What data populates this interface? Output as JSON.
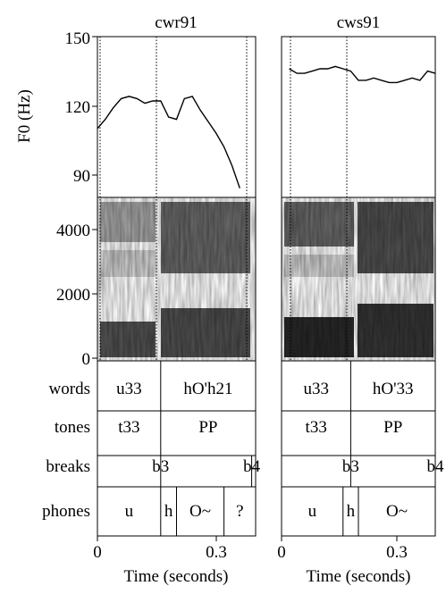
{
  "panels": [
    {
      "title": "cwr91",
      "f0_contour_hz": [
        {
          "t": 0.0,
          "f0": 110
        },
        {
          "t": 0.02,
          "f0": 114
        },
        {
          "t": 0.04,
          "f0": 119
        },
        {
          "t": 0.06,
          "f0": 123
        },
        {
          "t": 0.08,
          "f0": 124
        },
        {
          "t": 0.1,
          "f0": 123
        },
        {
          "t": 0.12,
          "f0": 121
        },
        {
          "t": 0.14,
          "f0": 122
        },
        {
          "t": 0.16,
          "f0": 122
        },
        {
          "t": 0.18,
          "f0": 115
        },
        {
          "t": 0.2,
          "f0": 114
        },
        {
          "t": 0.22,
          "f0": 123
        },
        {
          "t": 0.24,
          "f0": 124
        },
        {
          "t": 0.26,
          "f0": 118
        },
        {
          "t": 0.28,
          "f0": 113
        },
        {
          "t": 0.3,
          "f0": 108
        },
        {
          "t": 0.32,
          "f0": 102
        },
        {
          "t": 0.34,
          "f0": 94
        },
        {
          "t": 0.36,
          "f0": 84
        }
      ],
      "tiers": {
        "words": [
          {
            "label": "u33",
            "start": 0.0,
            "end": 0.16
          },
          {
            "label": "hO'h21",
            "start": 0.16,
            "end": 0.4
          }
        ],
        "tones": [
          {
            "label": "t33",
            "start": 0.0,
            "end": 0.16
          },
          {
            "label": "PP",
            "start": 0.16,
            "end": 0.4
          }
        ],
        "breaks": [
          {
            "label": "b3",
            "time": 0.16
          },
          {
            "label": "b4",
            "time": 0.39
          }
        ],
        "phones": [
          {
            "label": "u",
            "start": 0.0,
            "end": 0.16
          },
          {
            "label": "h",
            "start": 0.16,
            "end": 0.2
          },
          {
            "label": "O~",
            "start": 0.2,
            "end": 0.32
          },
          {
            "label": "?",
            "start": 0.32,
            "end": 0.4
          }
        ]
      }
    },
    {
      "title": "cws91",
      "f0_contour_hz": [
        {
          "t": 0.02,
          "f0": 136
        },
        {
          "t": 0.04,
          "f0": 134
        },
        {
          "t": 0.06,
          "f0": 134
        },
        {
          "t": 0.08,
          "f0": 135
        },
        {
          "t": 0.1,
          "f0": 136
        },
        {
          "t": 0.12,
          "f0": 136
        },
        {
          "t": 0.14,
          "f0": 137
        },
        {
          "t": 0.16,
          "f0": 136
        },
        {
          "t": 0.18,
          "f0": 135
        },
        {
          "t": 0.2,
          "f0": 131
        },
        {
          "t": 0.22,
          "f0": 131
        },
        {
          "t": 0.24,
          "f0": 132
        },
        {
          "t": 0.26,
          "f0": 131
        },
        {
          "t": 0.28,
          "f0": 130
        },
        {
          "t": 0.3,
          "f0": 130
        },
        {
          "t": 0.32,
          "f0": 131
        },
        {
          "t": 0.34,
          "f0": 132
        },
        {
          "t": 0.36,
          "f0": 131
        },
        {
          "t": 0.38,
          "f0": 135
        },
        {
          "t": 0.4,
          "f0": 134
        }
      ],
      "tiers": {
        "words": [
          {
            "label": "u33",
            "start": 0.0,
            "end": 0.18
          },
          {
            "label": "hO'33",
            "start": 0.18,
            "end": 0.4
          }
        ],
        "tones": [
          {
            "label": "t33",
            "start": 0.0,
            "end": 0.18
          },
          {
            "label": "PP",
            "start": 0.18,
            "end": 0.4
          }
        ],
        "breaks": [
          {
            "label": "b3",
            "time": 0.18
          },
          {
            "label": "b4",
            "time": 0.4
          }
        ],
        "phones": [
          {
            "label": "u",
            "start": 0.0,
            "end": 0.16
          },
          {
            "label": "h",
            "start": 0.16,
            "end": 0.2
          },
          {
            "label": "O~",
            "start": 0.2,
            "end": 0.4
          }
        ]
      }
    }
  ],
  "f0_axis": {
    "label": "F0 (Hz)",
    "ticks": [
      "150",
      "120",
      "90"
    ],
    "range": [
      80,
      150
    ]
  },
  "freq_axis": {
    "ticks": [
      "4000",
      "2000",
      "0"
    ],
    "range": [
      0,
      5000
    ]
  },
  "tier_labels": [
    "words",
    "tones",
    "breaks",
    "phones"
  ],
  "time_axis": {
    "label": "Time (seconds)",
    "ticks": [
      "0",
      "0.3"
    ],
    "range": [
      0,
      0.4
    ]
  },
  "colors": {
    "ink": "#000000",
    "background": "#ffffff",
    "spectrogram": "#333333"
  }
}
